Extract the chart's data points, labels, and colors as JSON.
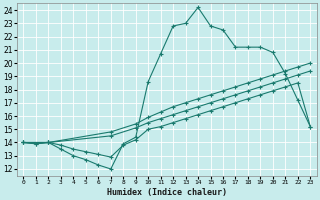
{
  "xlabel": "Humidex (Indice chaleur)",
  "bg_color": "#c8ecec",
  "grid_color": "#ffffff",
  "line_color": "#1a7a6e",
  "xlim": [
    -0.5,
    23.5
  ],
  "ylim": [
    11.5,
    24.5
  ],
  "xticks": [
    0,
    1,
    2,
    3,
    4,
    5,
    6,
    7,
    8,
    9,
    10,
    11,
    12,
    13,
    14,
    15,
    16,
    17,
    18,
    19,
    20,
    21,
    22,
    23
  ],
  "yticks": [
    12,
    13,
    14,
    15,
    16,
    17,
    18,
    19,
    20,
    21,
    22,
    23,
    24
  ],
  "line1_x": [
    0,
    1,
    2,
    3,
    4,
    5,
    6,
    7,
    8,
    9,
    10,
    11,
    12,
    13,
    14,
    15,
    16,
    17,
    18,
    19,
    20,
    21,
    22,
    23
  ],
  "line1_y": [
    14,
    13.9,
    14,
    13.5,
    13,
    12.7,
    12.3,
    12.0,
    13.9,
    14.4,
    18.6,
    20.7,
    22.8,
    23.0,
    24.2,
    22.8,
    22.5,
    21.2,
    21.2,
    21.2,
    20.8,
    19.2,
    17.2,
    15.2
  ],
  "line2_x": [
    0,
    2,
    7,
    9,
    10,
    11,
    12,
    13,
    14,
    15,
    16,
    17,
    18,
    19,
    20,
    21,
    22,
    23
  ],
  "line2_y": [
    14,
    14,
    14.8,
    15.4,
    15.9,
    16.3,
    16.7,
    17.0,
    17.3,
    17.6,
    17.9,
    18.2,
    18.5,
    18.8,
    19.1,
    19.4,
    19.7,
    20.0
  ],
  "line3_x": [
    0,
    2,
    7,
    9,
    10,
    11,
    12,
    13,
    14,
    15,
    16,
    17,
    18,
    19,
    20,
    21,
    22,
    23
  ],
  "line3_y": [
    14,
    14,
    14.5,
    15.1,
    15.5,
    15.8,
    16.1,
    16.4,
    16.7,
    17.0,
    17.3,
    17.6,
    17.9,
    18.2,
    18.5,
    18.8,
    19.1,
    19.4
  ],
  "line4_x": [
    0,
    1,
    2,
    3,
    4,
    5,
    6,
    7,
    8,
    9,
    10,
    11,
    12,
    13,
    14,
    15,
    16,
    17,
    18,
    19,
    20,
    21,
    22,
    23
  ],
  "line4_y": [
    14,
    13.9,
    14,
    13.8,
    13.5,
    13.3,
    13.1,
    12.9,
    13.8,
    14.2,
    15.0,
    15.2,
    15.5,
    15.8,
    16.1,
    16.4,
    16.7,
    17.0,
    17.3,
    17.6,
    17.9,
    18.2,
    18.5,
    15.2
  ]
}
